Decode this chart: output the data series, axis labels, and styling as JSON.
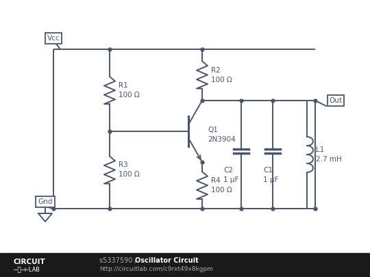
{
  "bg_color": "#ffffff",
  "circuit_color": "#4a5568",
  "footer_bg": "#1a1a1a",
  "footer_text_color": "#ffffff",
  "footer_id": "s5337590",
  "footer_title": "Oscillator Circuit",
  "footer_url": "http://circuitlab.com/c9rxt49x8kgpm",
  "vcc_label": "Vcc",
  "gnd_label": "Gnd",
  "out_label": "Out",
  "r1_label": "R1\n100 Ω",
  "r2_label": "R2\n100 Ω",
  "r3_label": "R3\n100 Ω",
  "r4_label": "R4\n100 Ω",
  "q1_label": "Q1\n2N3904",
  "c1_label": "C1\n1 µF",
  "c2_label": "C2\n1 µF",
  "l1_label": "L1\n2.7 mH",
  "fig_w": 5.4,
  "fig_h": 4.05,
  "dpi": 100
}
